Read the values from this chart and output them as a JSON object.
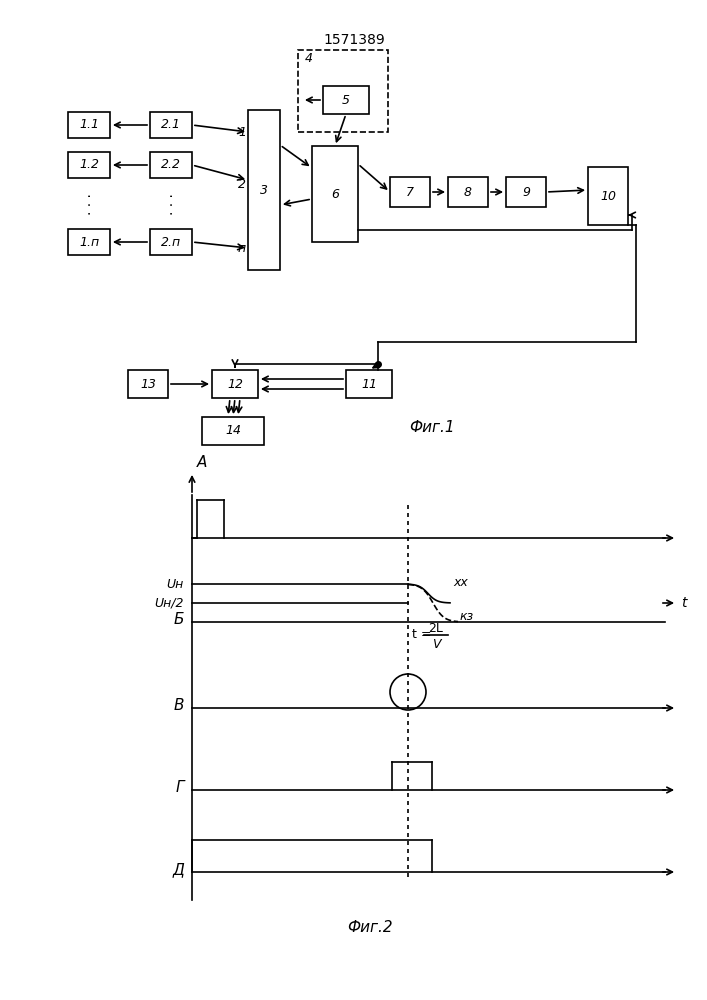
{
  "title": "1571389",
  "fig1_label": "Фиг.1",
  "fig2_label": "Фиг.2",
  "bg_color": "#ffffff",
  "line_color": "#000000",
  "fs": 9,
  "title_fs": 10
}
